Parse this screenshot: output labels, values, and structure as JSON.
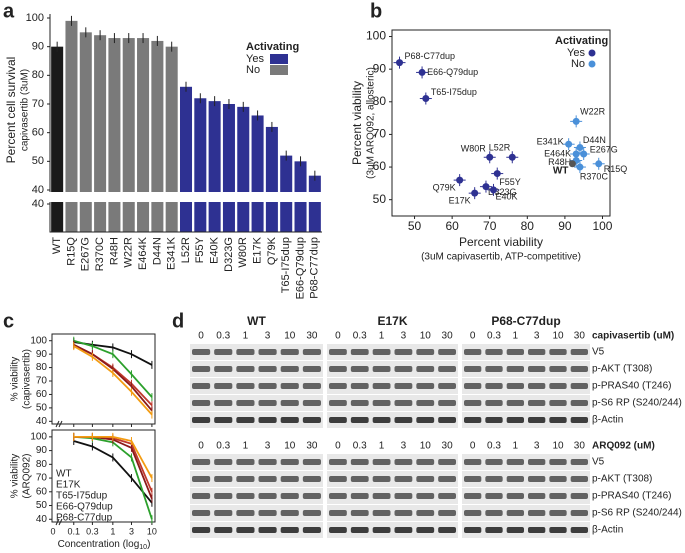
{
  "panel_labels": [
    "a",
    "b",
    "c",
    "d"
  ],
  "chart_data": [
    {
      "type": "bar",
      "ylabel": "Percent cell survival",
      "ylabel2": "capivasertib (3uM)",
      "categories": [
        "WT",
        "R15Q",
        "E267G",
        "R370C",
        "R48H",
        "W22R",
        "E464K",
        "D44N",
        "E341K",
        "L52R",
        "F55Y",
        "E40K",
        "D323G",
        "W80R",
        "E17K",
        "Q79K",
        "T65-I75dup",
        "E66-Q79dup",
        "P68-C77dup"
      ],
      "values": [
        90,
        99,
        95,
        94,
        93,
        93,
        93,
        92,
        90,
        76,
        72,
        71,
        70,
        69,
        66,
        62,
        52,
        50,
        45
      ],
      "colors": [
        "#1a1a1a",
        "#7a7a7a",
        "#7a7a7a",
        "#7a7a7a",
        "#7a7a7a",
        "#7a7a7a",
        "#7a7a7a",
        "#7a7a7a",
        "#7a7a7a",
        "#2e3192",
        "#2e3192",
        "#2e3192",
        "#2e3192",
        "#2e3192",
        "#2e3192",
        "#2e3192",
        "#2e3192",
        "#2e3192",
        "#2e3192"
      ],
      "legend": {
        "title": "Activating",
        "entries": [
          {
            "name": "Yes",
            "color": "#2e3192"
          },
          {
            "name": "No",
            "color": "#7a7a7a"
          }
        ]
      },
      "ylim": [
        0,
        100
      ],
      "ybreak": 40,
      "yticks": [
        40,
        50,
        60,
        70,
        80,
        90,
        100
      ]
    },
    {
      "type": "scatter",
      "xlabel": "Percent viability",
      "xlabel2": "(3uM capivasertib, ATP-competitive)",
      "ylabel": "Percent viability",
      "ylabel2": "(3uM ARQ092, allosteric)",
      "legend_title": "Activating",
      "series": [
        {
          "name": "Yes",
          "color": "#2e3192",
          "labels": [
            "P68-C77dup",
            "E66-Q79dup",
            "T65-I75dup",
            "W80R",
            "L52R",
            "Q79K",
            "F55Y",
            "D323G",
            "E17K",
            "E40K"
          ],
          "x": [
            46,
            52,
            53,
            70,
            76,
            62,
            72,
            69,
            66,
            71
          ],
          "y": [
            92,
            89,
            81,
            63,
            63,
            56,
            58,
            54,
            52,
            53
          ]
        },
        {
          "name": "No",
          "color": "#4a90d9",
          "labels": [
            "W22R",
            "D44N",
            "E267G",
            "E341K",
            "E464K",
            "R48H",
            "R15Q",
            "R370C"
          ],
          "x": [
            93,
            94,
            95,
            91,
            93,
            93,
            99,
            94
          ],
          "y": [
            74,
            66,
            64,
            67,
            64,
            62,
            61,
            60
          ]
        }
      ],
      "reference": {
        "label": "WT",
        "color": "#555555",
        "x": 92,
        "y": 61
      },
      "xlim": [
        44,
        102
      ],
      "ylim": [
        45,
        102
      ],
      "xticks": [
        50,
        60,
        70,
        80,
        90,
        100
      ],
      "yticks": [
        50,
        60,
        70,
        80,
        90,
        100
      ]
    },
    {
      "type": "line",
      "ylabel": "% viability",
      "ylabel2": "(capivasertib)",
      "xlog": true,
      "x": [
        0.1,
        0.3,
        1,
        3,
        10
      ],
      "xlim": [
        0.05,
        12
      ],
      "xticks": [
        0.1,
        0.3,
        1,
        3,
        10
      ],
      "ylim": [
        38,
        105
      ],
      "yticks": [
        40,
        50,
        60,
        70,
        80,
        90,
        100
      ],
      "series": [
        {
          "name": "WT",
          "color": "#111111",
          "values": [
            99,
            97,
            95,
            90,
            82
          ]
        },
        {
          "name": "E17K",
          "color": "#2ca02c",
          "values": [
            100,
            96,
            90,
            75,
            58
          ]
        },
        {
          "name": "T65-I75dup",
          "color": "#c0392b",
          "values": [
            97,
            90,
            80,
            68,
            52
          ]
        },
        {
          "name": "E66-Q79dup",
          "color": "#8b1a1a",
          "values": [
            97,
            90,
            79,
            66,
            48
          ]
        },
        {
          "name": "P68-C77dup",
          "color": "#f39c12",
          "values": [
            96,
            88,
            76,
            62,
            45
          ]
        }
      ]
    },
    {
      "type": "line",
      "ylabel": "% viability",
      "ylabel2": "(ARQ092)",
      "xlog": true,
      "xlabel": "Concentration (log",
      "xlabel_sub": "10",
      "xlabel_end": ")",
      "xzero_label": "0",
      "x": [
        0.1,
        0.3,
        1,
        3,
        10
      ],
      "xlim": [
        0.05,
        12
      ],
      "xticks": [
        0.1,
        0.3,
        1,
        3,
        10
      ],
      "ylim": [
        38,
        105
      ],
      "yticks": [
        40,
        50,
        60,
        70,
        80,
        90,
        100
      ],
      "series": [
        {
          "name": "WT",
          "color": "#111111",
          "values": [
            97,
            93,
            85,
            70,
            52
          ]
        },
        {
          "name": "E17K",
          "color": "#2ca02c",
          "values": [
            100,
            99,
            96,
            85,
            40
          ]
        },
        {
          "name": "T65-I75dup",
          "color": "#c0392b",
          "values": [
            100,
            100,
            99,
            95,
            60
          ]
        },
        {
          "name": "E66-Q79dup",
          "color": "#8b1a1a",
          "values": [
            100,
            100,
            98,
            92,
            55
          ]
        },
        {
          "name": "P68-C77dup",
          "color": "#f39c12",
          "values": [
            100,
            100,
            100,
            97,
            70
          ]
        }
      ]
    }
  ],
  "blots": {
    "groups": [
      "WT",
      "E17K",
      "P68-C77dup"
    ],
    "doses": [
      "0",
      "0.3",
      "1",
      "3",
      "10",
      "30"
    ],
    "panels": [
      {
        "drug": "capivasertib (uM)",
        "rows": [
          "V5",
          "p-AKT (T308)",
          "p-PRAS40 (T246)",
          "p-S6 RP (S240/244)",
          "β-Actin"
        ]
      },
      {
        "drug": "ARQ092 (uM)",
        "rows": [
          "V5",
          "p-AKT (T308)",
          "p-PRAS40 (T246)",
          "p-S6 RP (S240/244)",
          "β-Actin"
        ]
      }
    ]
  }
}
